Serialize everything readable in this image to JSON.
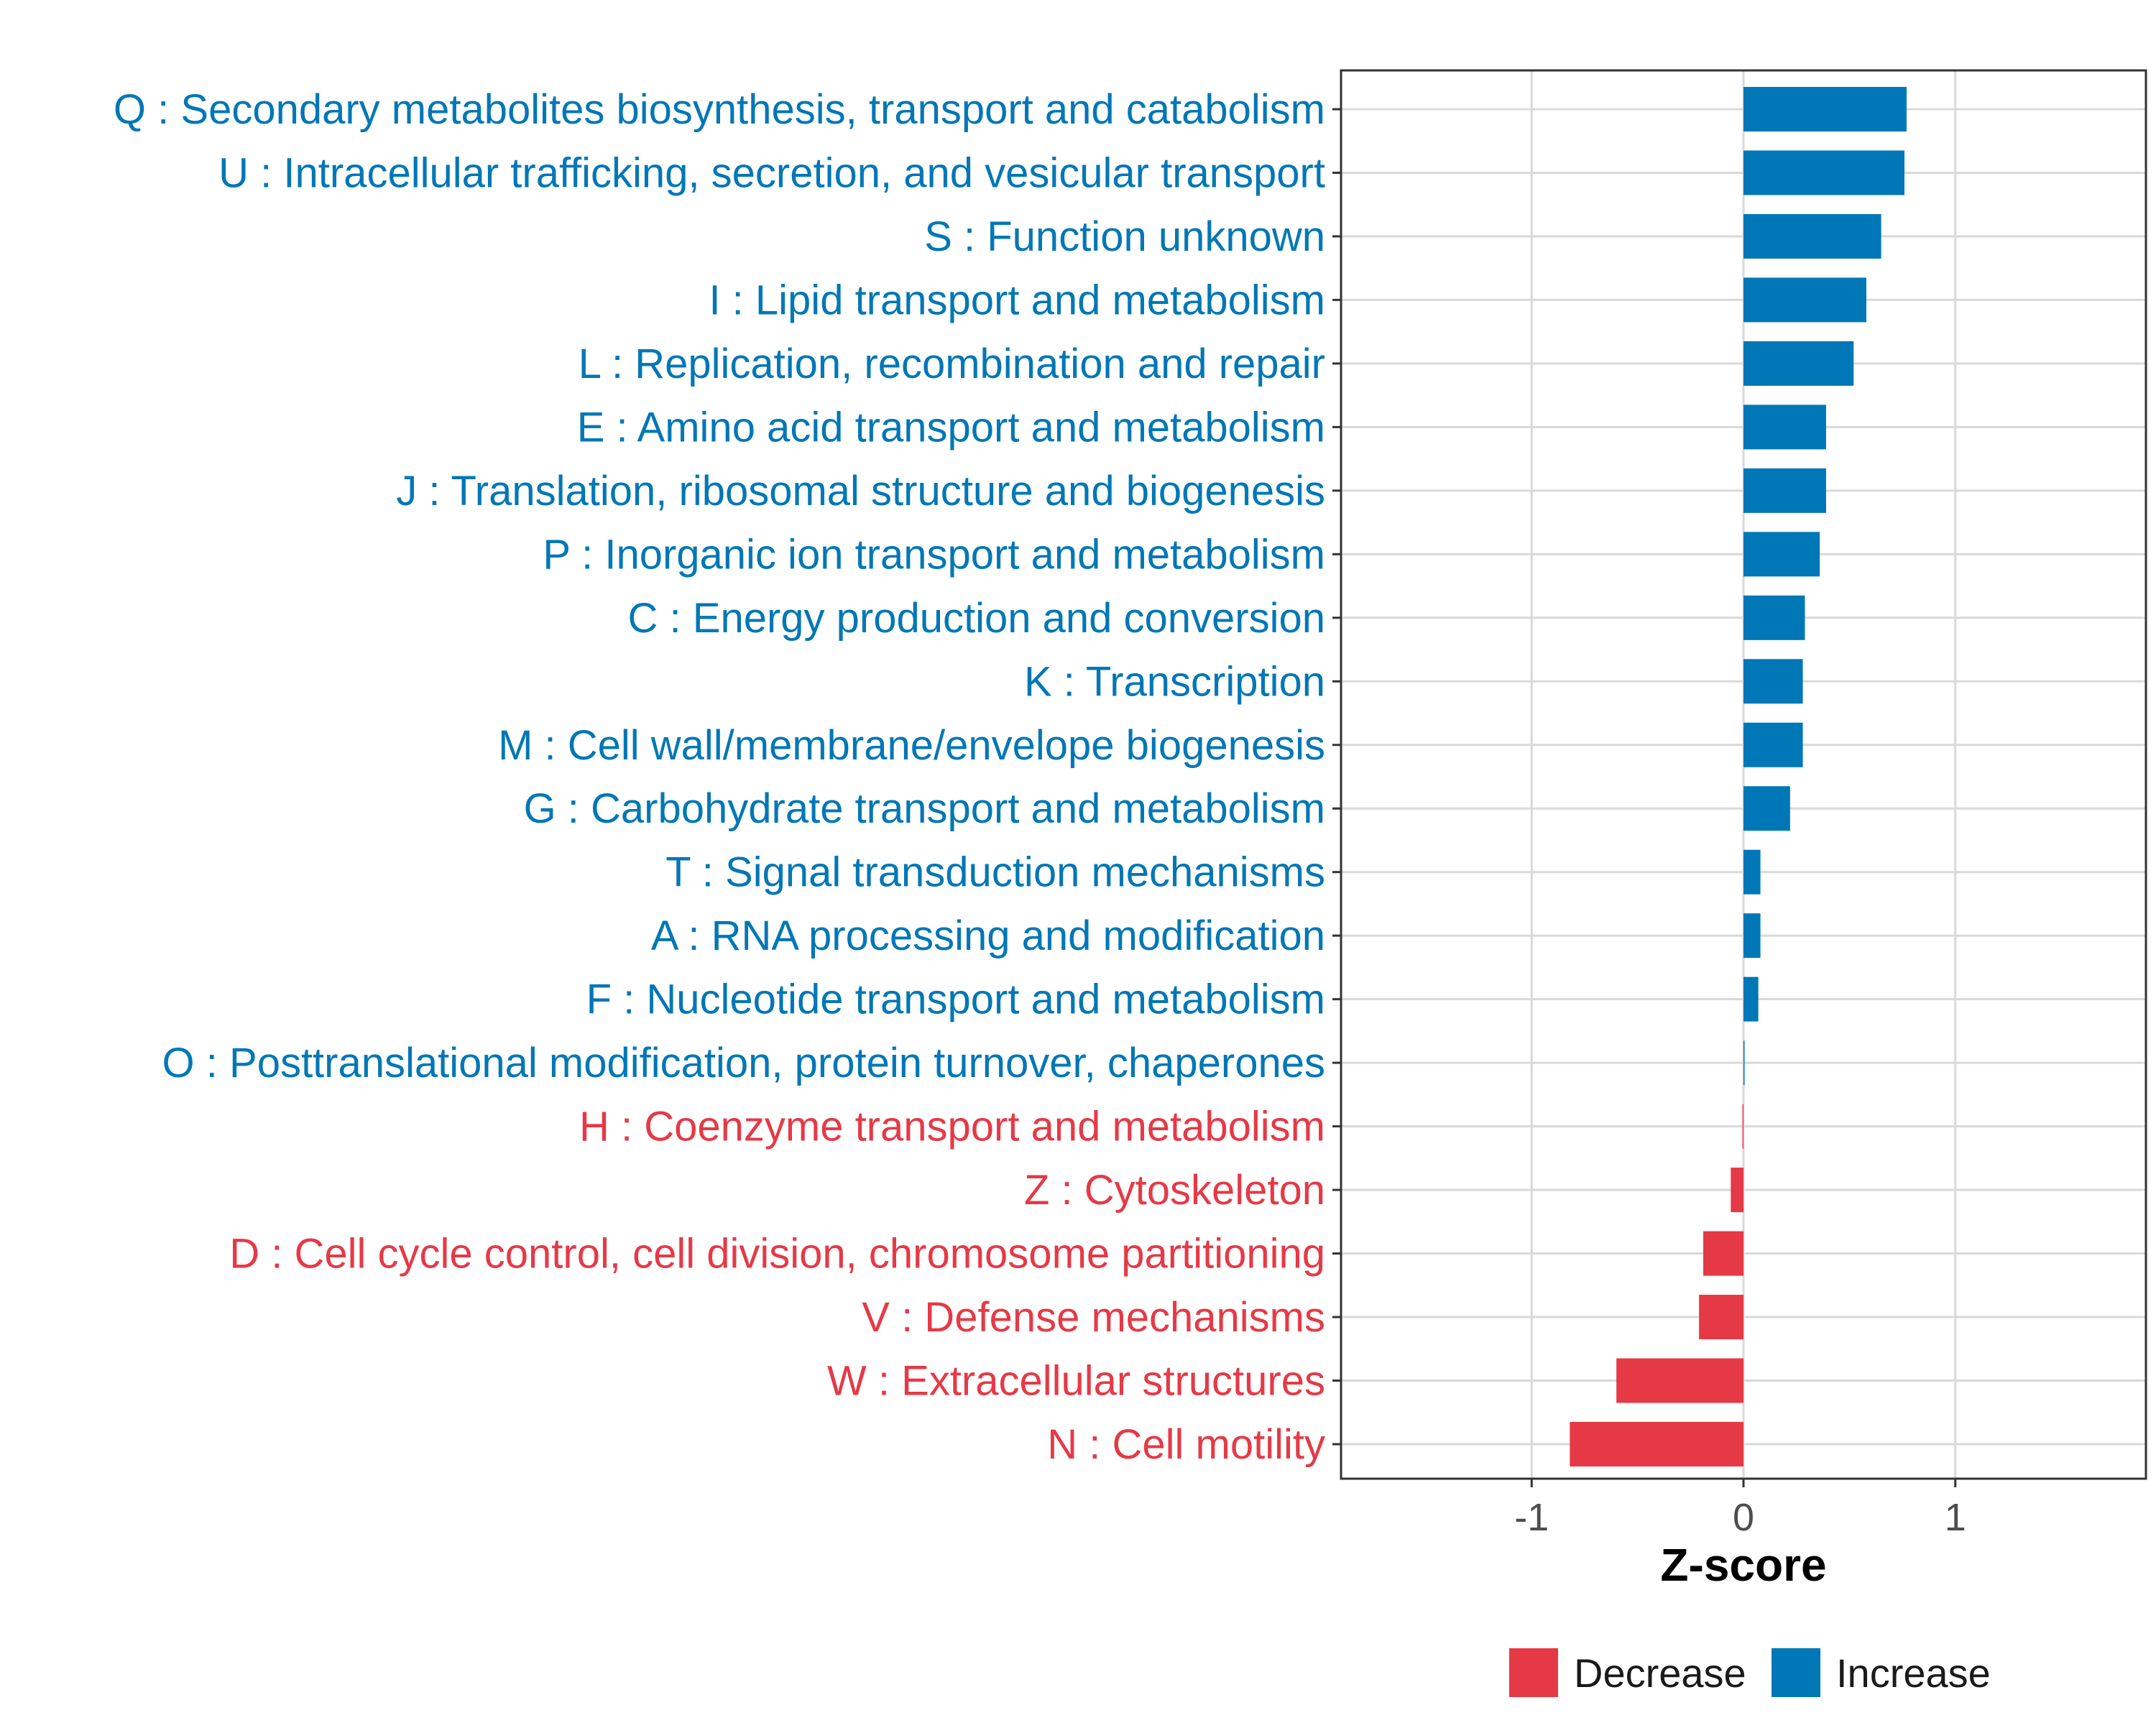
{
  "chart_data": {
    "type": "bar",
    "orientation": "horizontal",
    "title": "",
    "xlabel": "Z-score",
    "ylabel": "",
    "xlim": [
      -1.9,
      1.9
    ],
    "xticks": [
      -1,
      0,
      1
    ],
    "xtick_labels": [
      "-1",
      "0",
      "1"
    ],
    "grid": true,
    "legend_position": "bottom",
    "colors": {
      "Decrease": "#e63946",
      "Increase": "#0077b6"
    },
    "legend": [
      {
        "name": "Decrease",
        "color": "#e63946"
      },
      {
        "name": "Increase",
        "color": "#0077b6"
      }
    ],
    "categories": [
      "Q : Secondary metabolites biosynthesis, transport and catabolism",
      "U : Intracellular trafficking, secretion, and vesicular transport",
      "S : Function unknown",
      "I : Lipid transport and metabolism",
      "L : Replication, recombination and repair",
      "E : Amino acid transport and metabolism",
      "J : Translation, ribosomal structure and biogenesis",
      "P : Inorganic ion transport and metabolism",
      "C : Energy production and conversion",
      "K : Transcription",
      "M : Cell wall/membrane/envelope biogenesis",
      "G : Carbohydrate transport and metabolism",
      "T : Signal transduction mechanisms",
      "A : RNA processing and modification",
      "F : Nucleotide transport and metabolism",
      "O : Posttranslational modification, protein turnover, chaperones",
      "H : Coenzyme transport and metabolism",
      "Z : Cytoskeleton",
      "D : Cell cycle control, cell division, chromosome partitioning",
      "V : Defense mechanisms",
      "W : Extracellular structures",
      "N : Cell motility"
    ],
    "values": [
      0.77,
      0.76,
      0.65,
      0.58,
      0.52,
      0.39,
      0.39,
      0.36,
      0.29,
      0.28,
      0.28,
      0.22,
      0.08,
      0.08,
      0.07,
      0.005,
      -0.005,
      -0.06,
      -0.19,
      -0.21,
      -0.6,
      -0.82
    ],
    "groups": [
      "Increase",
      "Increase",
      "Increase",
      "Increase",
      "Increase",
      "Increase",
      "Increase",
      "Increase",
      "Increase",
      "Increase",
      "Increase",
      "Increase",
      "Increase",
      "Increase",
      "Increase",
      "Increase",
      "Decrease",
      "Decrease",
      "Decrease",
      "Decrease",
      "Decrease",
      "Decrease"
    ]
  }
}
